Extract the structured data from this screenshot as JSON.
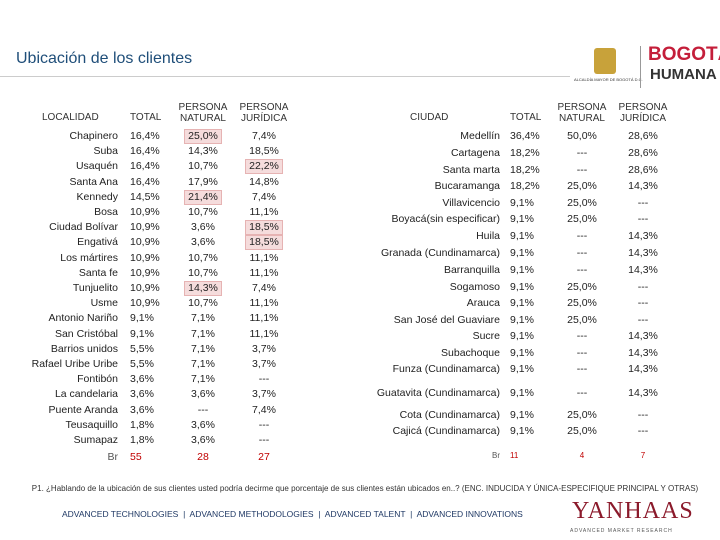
{
  "header": {
    "title": "Ubicación de los clientes",
    "logo_left": "ALCALDÍA MAYOR DE BOGOTÁ D.C.",
    "logo_right_top": "BOGOTÁ",
    "logo_right_bottom": "HUMANA"
  },
  "left_table": {
    "headers": [
      "LOCALIDAD",
      "TOTAL",
      "PERSONA NATURAL",
      "PERSONA JURÍDICA"
    ],
    "rows": [
      [
        "Chapinero",
        "16,4%",
        "25,0%",
        "7,4%"
      ],
      [
        "Suba",
        "16,4%",
        "14,3%",
        "18,5%"
      ],
      [
        "Usaquén",
        "16,4%",
        "10,7%",
        "22,2%"
      ],
      [
        "Santa Ana",
        "16,4%",
        "17,9%",
        "14,8%"
      ],
      [
        "Kennedy",
        "14,5%",
        "21,4%",
        "7,4%"
      ],
      [
        "Bosa",
        "10,9%",
        "10,7%",
        "11,1%"
      ],
      [
        "Ciudad Bolívar",
        "10,9%",
        "3,6%",
        "18,5%"
      ],
      [
        "Engativá",
        "10,9%",
        "3,6%",
        "18,5%"
      ],
      [
        "Los mártires",
        "10,9%",
        "10,7%",
        "11,1%"
      ],
      [
        "Santa fe",
        "10,9%",
        "10,7%",
        "11,1%"
      ],
      [
        "Tunjuelito",
        "10,9%",
        "14,3%",
        "7,4%"
      ],
      [
        "Usme",
        "10,9%",
        "10,7%",
        "11,1%"
      ],
      [
        "Antonio Nariño",
        "9,1%",
        "7,1%",
        "11,1%"
      ],
      [
        "San Cristóbal",
        "9,1%",
        "7,1%",
        "11,1%"
      ],
      [
        "Barrios unidos",
        "5,5%",
        "7,1%",
        "3,7%"
      ],
      [
        "Rafael Uribe Uribe",
        "5,5%",
        "7,1%",
        "3,7%"
      ],
      [
        "Fontibón",
        "3,6%",
        "7,1%",
        "---"
      ],
      [
        "La candelaria",
        "3,6%",
        "3,6%",
        "3,7%"
      ],
      [
        "Puente Aranda",
        "3,6%",
        "---",
        "7,4%"
      ],
      [
        "Teusaquillo",
        "1,8%",
        "3,6%",
        "---"
      ],
      [
        "Sumapaz",
        "1,8%",
        "3,6%",
        "---"
      ]
    ],
    "base": [
      "Br",
      55,
      28,
      27
    ],
    "highlighted": [
      [
        0,
        2
      ],
      [
        2,
        3
      ],
      [
        4,
        2
      ],
      [
        6,
        3
      ],
      [
        7,
        3
      ],
      [
        10,
        2
      ]
    ]
  },
  "right_table": {
    "headers": [
      "CIUDAD",
      "TOTAL",
      "PERSONA NATURAL",
      "PERSONA JURÍDICA"
    ],
    "rows": [
      [
        "Medellín",
        "36,4%",
        "50,0%",
        "28,6%"
      ],
      [
        "Cartagena",
        "18,2%",
        "---",
        "28,6%"
      ],
      [
        "Santa marta",
        "18,2%",
        "---",
        "28,6%"
      ],
      [
        "Bucaramanga",
        "18,2%",
        "25,0%",
        "14,3%"
      ],
      [
        "Villavicencio",
        "9,1%",
        "25,0%",
        "---"
      ],
      [
        "Boyacá(sin especificar)",
        "9,1%",
        "25,0%",
        "---"
      ],
      [
        "Huila",
        "9,1%",
        "---",
        "14,3%"
      ],
      [
        "Granada (Cundinamarca)",
        "9,1%",
        "---",
        "14,3%"
      ],
      [
        "Barranquilla",
        "9,1%",
        "---",
        "14,3%"
      ],
      [
        "Sogamoso",
        "9,1%",
        "25,0%",
        "---"
      ],
      [
        "Arauca",
        "9,1%",
        "25,0%",
        "---"
      ],
      [
        "San José del Guaviare",
        "9,1%",
        "25,0%",
        "---"
      ],
      [
        "Sucre",
        "9,1%",
        "---",
        "14,3%"
      ],
      [
        "Subachoque",
        "9,1%",
        "---",
        "14,3%"
      ],
      [
        "Funza (Cundinamarca)",
        "9,1%",
        "---",
        "14,3%"
      ],
      [
        "Guatavita (Cundinamarca)",
        "9,1%",
        "---",
        "14,3%"
      ],
      [
        "Cota (Cundinamarca)",
        "9,1%",
        "25,0%",
        "---"
      ],
      [
        "Cajicá (Cundinamarca)",
        "9,1%",
        "25,0%",
        "---"
      ]
    ],
    "base": [
      "Br",
      11,
      4,
      7
    ]
  },
  "footer": {
    "question": "P1. ¿Hablando de la ubicación de sus clientes usted podría decirme que porcentaje de sus clientes están ubicados en..? (ENC. INDUCIDA Y ÚNICA-ESPECIFIQUE PRINCIPAL Y OTRAS)",
    "tagline": "ADVANCED TECHNOLOGIES  |  ADVANCED METHODOLOGIES  |  ADVANCED TALENT  |  ADVANCED INNOVATIONS",
    "brand": "YANHAAS",
    "brand_sub": "ADVANCED MARKET RESEARCH"
  }
}
